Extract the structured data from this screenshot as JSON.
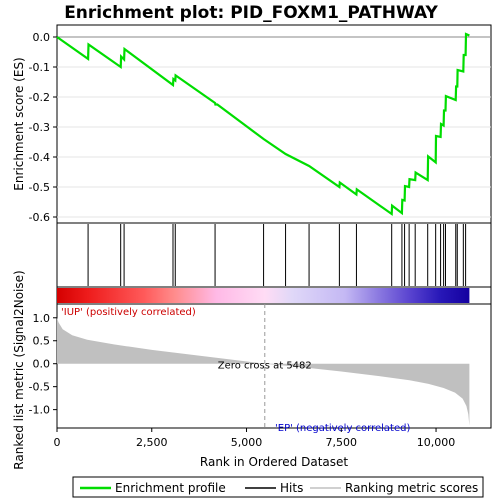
{
  "chart_data": {
    "type": "line",
    "title": "Enrichment plot: PID_FOXM1_PATHWAY",
    "top_panel": {
      "ylabel": "Enrichment score (ES)",
      "ylim": [
        -0.62,
        0.04
      ],
      "yticks": [
        "0.0",
        "-0.1",
        "-0.2",
        "-0.3",
        "-0.4",
        "-0.5",
        "-0.6"
      ],
      "ytick_values": [
        0.0,
        -0.1,
        -0.2,
        -0.3,
        -0.4,
        -0.5,
        -0.6
      ],
      "series": [
        {
          "name": "Enrichment profile",
          "color": "#00dd00",
          "x": [
            0,
            820,
            830,
            1680,
            1690,
            1770,
            1780,
            3060,
            3070,
            3120,
            3130,
            4170,
            4180,
            4230,
            5450,
            6030,
            6650,
            7450,
            7460,
            7900,
            7910,
            8830,
            8840,
            9100,
            9110,
            9170,
            9180,
            9290,
            9300,
            9450,
            9460,
            9780,
            9790,
            9990,
            10000,
            10120,
            10130,
            10200,
            10210,
            10250,
            10260,
            10520,
            10530,
            10560,
            10570,
            10720,
            10730,
            10780,
            10790,
            10880
          ],
          "y": [
            0.0,
            -0.073,
            -0.025,
            -0.1,
            -0.065,
            -0.075,
            -0.04,
            -0.16,
            -0.14,
            -0.145,
            -0.128,
            -0.22,
            -0.225,
            -0.225,
            -0.34,
            -0.39,
            -0.43,
            -0.5,
            -0.485,
            -0.525,
            -0.508,
            -0.59,
            -0.562,
            -0.587,
            -0.543,
            -0.545,
            -0.497,
            -0.5,
            -0.474,
            -0.477,
            -0.452,
            -0.477,
            -0.398,
            -0.418,
            -0.33,
            -0.333,
            -0.29,
            -0.295,
            -0.245,
            -0.245,
            -0.197,
            -0.21,
            -0.165,
            -0.165,
            -0.11,
            -0.115,
            -0.06,
            -0.06,
            0.01,
            0.005
          ]
        }
      ]
    },
    "hits_x": [
      820,
      1680,
      1770,
      3060,
      3120,
      4170,
      5450,
      6030,
      6650,
      7450,
      7900,
      8830,
      9100,
      9170,
      9290,
      9450,
      9780,
      9990,
      10120,
      10200,
      10250,
      10520,
      10560,
      10720,
      10780
    ],
    "bottom_panel": {
      "ylabel": "Ranked list metric (Signal2Noise)",
      "ylim": [
        -1.4,
        1.3
      ],
      "yticks": [
        "1.0",
        "0.5",
        "0.0",
        "-0.5",
        "-1.0"
      ],
      "ytick_values": [
        1.0,
        0.5,
        0.0,
        -0.5,
        -1.0
      ],
      "series": [
        {
          "name": "Ranking metric scores",
          "color": "#c0c0c0",
          "x": [
            0,
            40,
            150,
            400,
            800,
            1500,
            2500,
            3500,
            4500,
            5482,
            6500,
            7500,
            8500,
            9300,
            9800,
            10200,
            10500,
            10700,
            10800,
            10850,
            10880
          ],
          "y": [
            1.0,
            0.9,
            0.75,
            0.62,
            0.52,
            0.42,
            0.3,
            0.2,
            0.1,
            0.0,
            -0.08,
            -0.17,
            -0.27,
            -0.36,
            -0.44,
            -0.53,
            -0.63,
            -0.76,
            -0.92,
            -1.1,
            -1.35
          ]
        }
      ]
    },
    "xlabel": "Rank in Ordered Dataset",
    "xlim": [
      0,
      11450
    ],
    "xticks": [
      "0",
      "2,500",
      "5,000",
      "7,500",
      "10,000"
    ],
    "xtick_values": [
      0,
      2500,
      5000,
      7500,
      10000
    ],
    "zero_cross": 5482,
    "zero_cross_label": "Zero cross at 5482",
    "pos_label": "'IUP' (positively correlated)",
    "neg_label": "'EP' (negatively correlated)",
    "heatbar": {
      "stops": [
        {
          "x": 0,
          "color": "#d40000"
        },
        {
          "x": 820,
          "color": "#ee1c1c"
        },
        {
          "x": 2300,
          "color": "#ff5a5a"
        },
        {
          "x": 3100,
          "color": "#ff8c8c"
        },
        {
          "x": 4200,
          "color": "#ffb9e6"
        },
        {
          "x": 5482,
          "color": "#ffdcf5"
        },
        {
          "x": 6200,
          "color": "#e0d8f8"
        },
        {
          "x": 7600,
          "color": "#c4b8f4"
        },
        {
          "x": 8500,
          "color": "#8a78e0"
        },
        {
          "x": 9300,
          "color": "#5a44d0"
        },
        {
          "x": 10100,
          "color": "#2818b8"
        },
        {
          "x": 10880,
          "color": "#1400a0"
        }
      ]
    },
    "legend": {
      "position": "bottom",
      "items": [
        {
          "label": "Enrichment profile",
          "color": "#00dd00"
        },
        {
          "label": "Hits",
          "color": "#000000"
        },
        {
          "label": "Ranking metric scores",
          "color": "#c0c0c0"
        }
      ]
    }
  }
}
